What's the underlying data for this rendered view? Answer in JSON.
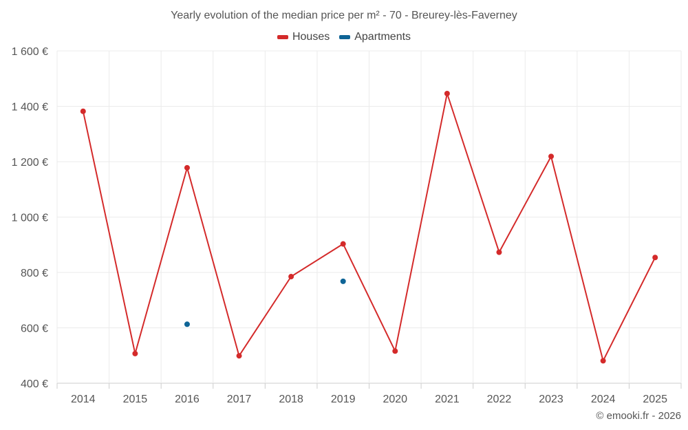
{
  "chart_data": {
    "type": "line",
    "title": "Yearly evolution of the median price per m² - 70 - Breurey-lès-Faverney",
    "categories": [
      "2014",
      "2015",
      "2016",
      "2017",
      "2018",
      "2019",
      "2020",
      "2021",
      "2022",
      "2023",
      "2024",
      "2025"
    ],
    "y_ticks": [
      "400 €",
      "600 €",
      "800 €",
      "1 000 €",
      "1 200 €",
      "1 400 €",
      "1 600 €"
    ],
    "ylim": [
      400,
      1600
    ],
    "ytick_values": [
      400,
      600,
      800,
      1000,
      1200,
      1400,
      1600
    ],
    "grid": true,
    "legend_position": "top-center",
    "series": [
      {
        "name": "Houses",
        "color": "#d42a2a",
        "values": [
          1382,
          507,
          1178,
          499,
          785,
          903,
          516,
          1446,
          873,
          1219,
          481,
          854
        ]
      },
      {
        "name": "Apartments",
        "color": "#0e6496",
        "values": [
          null,
          null,
          613,
          null,
          null,
          768,
          null,
          null,
          null,
          null,
          null,
          null
        ]
      }
    ]
  },
  "credit": "© emooki.fr - 2026"
}
